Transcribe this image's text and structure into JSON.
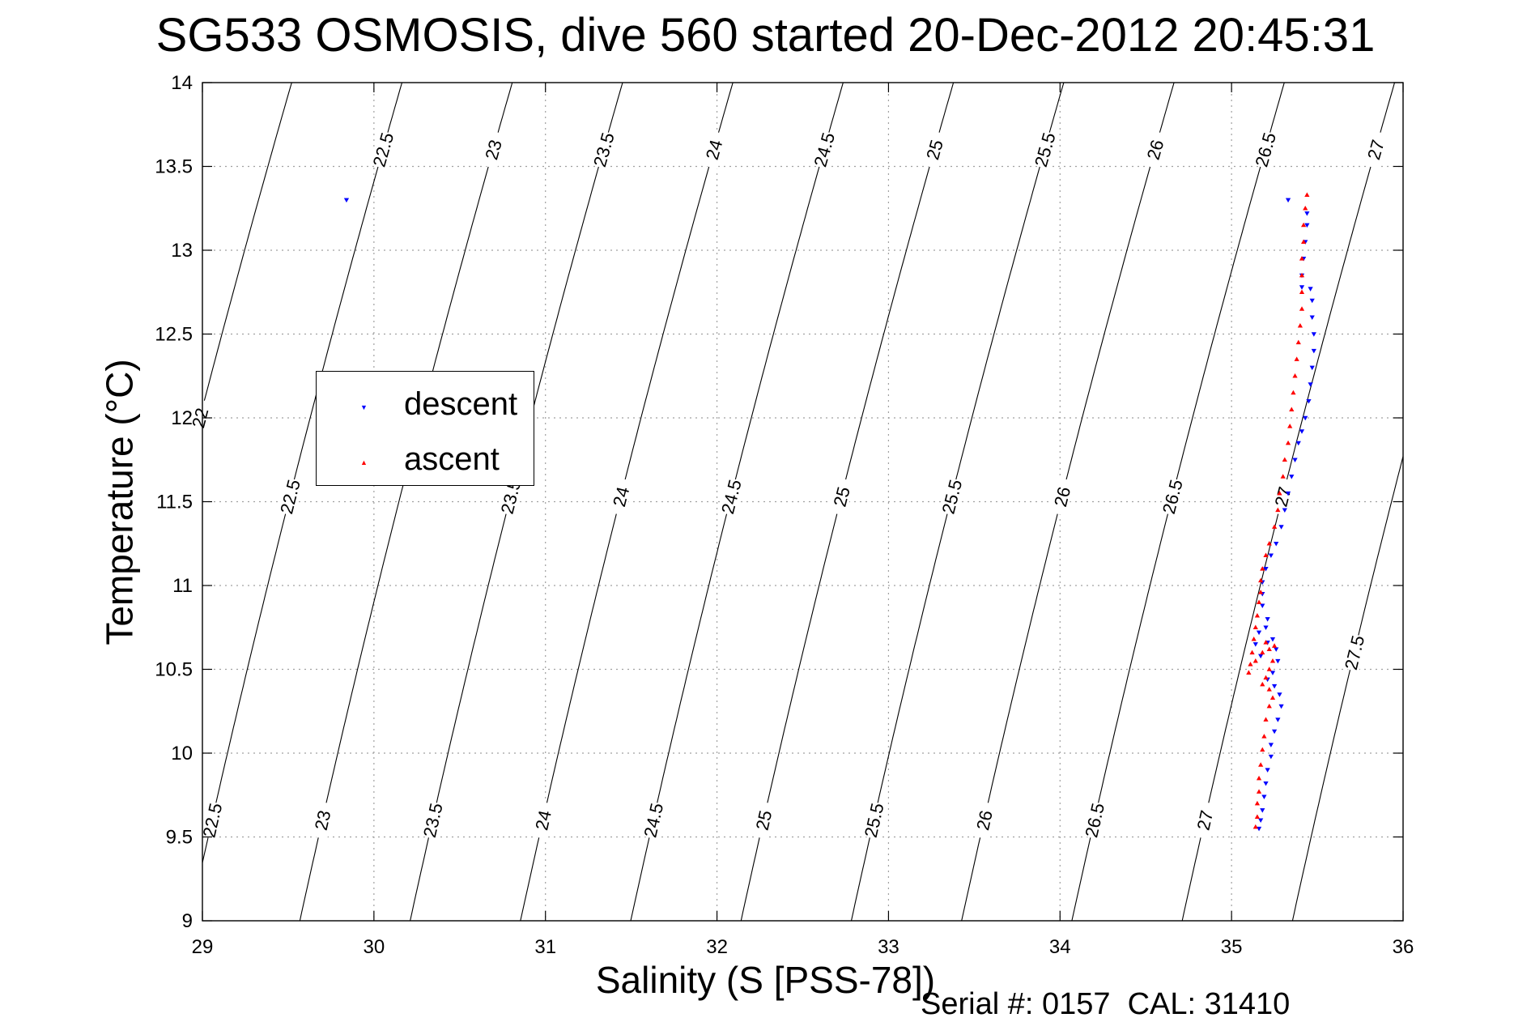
{
  "title": "SG533 OSMOSIS, dive 560 started 20-Dec-2012 20:45:31",
  "footnote": "Serial #: 0157  CAL: 31410",
  "chart_data": {
    "type": "scatter",
    "xlabel": "Salinity (S [PSS-78])",
    "ylabel": "Temperature (°C)",
    "xlim": [
      29,
      36
    ],
    "ylim": [
      9,
      14
    ],
    "xticks": [
      29,
      30,
      31,
      32,
      33,
      34,
      35,
      36
    ],
    "yticks": [
      9,
      9.5,
      10,
      10.5,
      11,
      11.5,
      12,
      12.5,
      13,
      13.5,
      14
    ],
    "grid": true,
    "legend_position": "upper-left",
    "density_contours": {
      "levels": [
        22,
        22.5,
        23,
        23.5,
        24,
        24.5,
        25,
        25.5,
        26,
        26.5,
        27,
        27.5
      ],
      "color": "#000000",
      "label_rows": [
        {
          "t": 13.6,
          "levels": [
            22.5,
            23,
            23.5,
            24,
            24.5,
            25,
            25.5,
            26,
            26.5,
            27
          ]
        },
        {
          "t": 12.0,
          "levels": [
            22
          ]
        },
        {
          "t": 11.53,
          "levels": [
            22.5,
            23.5,
            24,
            24.5,
            25,
            25.5,
            26,
            26.5,
            27
          ]
        },
        {
          "t": 10.6,
          "levels": [
            27.5
          ]
        },
        {
          "t": 9.6,
          "levels": [
            22.5,
            23,
            23.5,
            24,
            24.5,
            25,
            25.5,
            26,
            26.5,
            27
          ]
        }
      ]
    },
    "series": [
      {
        "name": "descent",
        "color": "#0000ff",
        "marker": "triangle-down",
        "points": [
          [
            29.84,
            13.3
          ],
          [
            35.33,
            13.3
          ],
          [
            35.44,
            13.22
          ],
          [
            35.44,
            13.15
          ],
          [
            35.43,
            13.05
          ],
          [
            35.42,
            12.95
          ],
          [
            35.41,
            12.85
          ],
          [
            35.41,
            12.78
          ],
          [
            35.46,
            12.77
          ],
          [
            35.47,
            12.7
          ],
          [
            35.47,
            12.6
          ],
          [
            35.48,
            12.5
          ],
          [
            35.48,
            12.4
          ],
          [
            35.47,
            12.3
          ],
          [
            35.46,
            12.2
          ],
          [
            35.45,
            12.1
          ],
          [
            35.43,
            12.0
          ],
          [
            35.41,
            11.92
          ],
          [
            35.39,
            11.85
          ],
          [
            35.37,
            11.75
          ],
          [
            35.35,
            11.65
          ],
          [
            35.33,
            11.55
          ],
          [
            35.31,
            11.45
          ],
          [
            35.29,
            11.35
          ],
          [
            35.26,
            11.25
          ],
          [
            35.23,
            11.18
          ],
          [
            35.2,
            11.1
          ],
          [
            35.18,
            11.02
          ],
          [
            35.18,
            10.95
          ],
          [
            35.18,
            10.88
          ],
          [
            35.21,
            10.8
          ],
          [
            35.2,
            10.75
          ],
          [
            35.16,
            10.72
          ],
          [
            35.14,
            10.65
          ],
          [
            35.17,
            10.58
          ],
          [
            35.21,
            10.66
          ],
          [
            35.24,
            10.68
          ],
          [
            35.26,
            10.62
          ],
          [
            35.27,
            10.55
          ],
          [
            35.24,
            10.48
          ],
          [
            35.21,
            10.44
          ],
          [
            35.25,
            10.4
          ],
          [
            35.28,
            10.35
          ],
          [
            35.29,
            10.28
          ],
          [
            35.27,
            10.2
          ],
          [
            35.25,
            10.13
          ],
          [
            35.23,
            10.05
          ],
          [
            35.23,
            9.98
          ],
          [
            35.21,
            9.9
          ],
          [
            35.2,
            9.82
          ],
          [
            35.19,
            9.74
          ],
          [
            35.18,
            9.66
          ],
          [
            35.17,
            9.6
          ],
          [
            35.16,
            9.55
          ]
        ]
      },
      {
        "name": "ascent",
        "color": "#ff0000",
        "marker": "triangle-up",
        "points": [
          [
            35.44,
            13.33
          ],
          [
            35.43,
            13.25
          ],
          [
            35.42,
            13.15
          ],
          [
            35.42,
            13.05
          ],
          [
            35.41,
            12.95
          ],
          [
            35.41,
            12.85
          ],
          [
            35.41,
            12.75
          ],
          [
            35.41,
            12.65
          ],
          [
            35.4,
            12.55
          ],
          [
            35.39,
            12.45
          ],
          [
            35.38,
            12.35
          ],
          [
            35.37,
            12.25
          ],
          [
            35.36,
            12.15
          ],
          [
            35.35,
            12.05
          ],
          [
            35.34,
            11.95
          ],
          [
            35.33,
            11.85
          ],
          [
            35.31,
            11.75
          ],
          [
            35.3,
            11.65
          ],
          [
            35.28,
            11.55
          ],
          [
            35.27,
            11.45
          ],
          [
            35.25,
            11.35
          ],
          [
            35.22,
            11.25
          ],
          [
            35.2,
            11.18
          ],
          [
            35.18,
            11.1
          ],
          [
            35.17,
            11.03
          ],
          [
            35.17,
            10.96
          ],
          [
            35.16,
            10.9
          ],
          [
            35.15,
            10.82
          ],
          [
            35.14,
            10.75
          ],
          [
            35.13,
            10.68
          ],
          [
            35.12,
            10.6
          ],
          [
            35.11,
            10.53
          ],
          [
            35.1,
            10.48
          ],
          [
            35.14,
            10.55
          ],
          [
            35.18,
            10.6
          ],
          [
            35.2,
            10.66
          ],
          [
            35.22,
            10.62
          ],
          [
            35.25,
            10.64
          ],
          [
            35.24,
            10.55
          ],
          [
            35.22,
            10.5
          ],
          [
            35.2,
            10.45
          ],
          [
            35.18,
            10.41
          ],
          [
            35.22,
            10.38
          ],
          [
            35.24,
            10.33
          ],
          [
            35.22,
            10.28
          ],
          [
            35.2,
            10.2
          ],
          [
            35.19,
            10.1
          ],
          [
            35.18,
            10.02
          ],
          [
            35.17,
            9.93
          ],
          [
            35.16,
            9.85
          ],
          [
            35.16,
            9.77
          ],
          [
            35.15,
            9.7
          ],
          [
            35.15,
            9.62
          ],
          [
            35.14,
            9.56
          ]
        ]
      }
    ]
  }
}
